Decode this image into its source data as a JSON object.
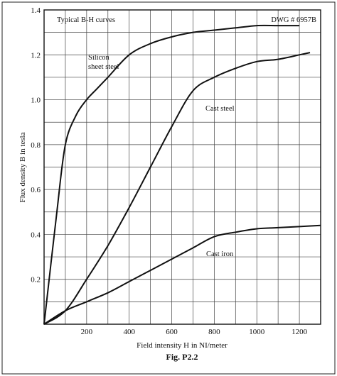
{
  "header": {
    "left": "Typical B-H curves",
    "right": "DWG # 6957B"
  },
  "caption": "Fig. P2.2",
  "chart_data": {
    "type": "line",
    "title": "Typical B-H curves",
    "xlabel": "Field intensity H in NI/meter",
    "ylabel": "Flux density B in tesla",
    "xlim": [
      0,
      1300
    ],
    "ylim": [
      0,
      1.4
    ],
    "x_ticks": [
      200,
      400,
      600,
      800,
      1000,
      1200
    ],
    "x_tick_labels": [
      "200",
      "400",
      "600",
      "800",
      "1000",
      "1200"
    ],
    "y_ticks": [
      0.2,
      0.4,
      0.6,
      0.8,
      1.0,
      1.2,
      1.4
    ],
    "y_tick_labels": [
      "0.2",
      "0.4",
      "0.6",
      "0.8",
      "1.0",
      "1.2",
      "1.4"
    ],
    "grid": true,
    "annotations": [
      {
        "text": "Silicon",
        "series": "Silicon sheet steel"
      },
      {
        "text": "sheet steel",
        "series": "Silicon sheet steel"
      },
      {
        "text": "Cast steel",
        "series": "Cast steel"
      },
      {
        "text": "Cast iron",
        "series": "Cast iron"
      }
    ],
    "series": [
      {
        "name": "Silicon sheet steel",
        "points": [
          [
            0,
            0
          ],
          [
            60,
            0.5
          ],
          [
            100,
            0.8
          ],
          [
            150,
            0.93
          ],
          [
            200,
            1.0
          ],
          [
            250,
            1.05
          ],
          [
            300,
            1.1
          ],
          [
            400,
            1.2
          ],
          [
            500,
            1.25
          ],
          [
            600,
            1.28
          ],
          [
            700,
            1.3
          ],
          [
            800,
            1.31
          ],
          [
            900,
            1.32
          ],
          [
            1000,
            1.33
          ],
          [
            1100,
            1.33
          ],
          [
            1200,
            1.33
          ]
        ]
      },
      {
        "name": "Cast steel",
        "points": [
          [
            0,
            0
          ],
          [
            100,
            0.06
          ],
          [
            200,
            0.2
          ],
          [
            300,
            0.35
          ],
          [
            400,
            0.52
          ],
          [
            500,
            0.7
          ],
          [
            600,
            0.88
          ],
          [
            700,
            1.04
          ],
          [
            800,
            1.1
          ],
          [
            900,
            1.14
          ],
          [
            1000,
            1.17
          ],
          [
            1100,
            1.18
          ],
          [
            1200,
            1.2
          ],
          [
            1250,
            1.21
          ]
        ]
      },
      {
        "name": "Cast iron",
        "points": [
          [
            0,
            0
          ],
          [
            100,
            0.06
          ],
          [
            200,
            0.1
          ],
          [
            300,
            0.14
          ],
          [
            400,
            0.19
          ],
          [
            500,
            0.24
          ],
          [
            600,
            0.29
          ],
          [
            700,
            0.34
          ],
          [
            800,
            0.39
          ],
          [
            900,
            0.41
          ],
          [
            1000,
            0.425
          ],
          [
            1100,
            0.43
          ],
          [
            1200,
            0.435
          ],
          [
            1300,
            0.44
          ]
        ]
      }
    ]
  }
}
